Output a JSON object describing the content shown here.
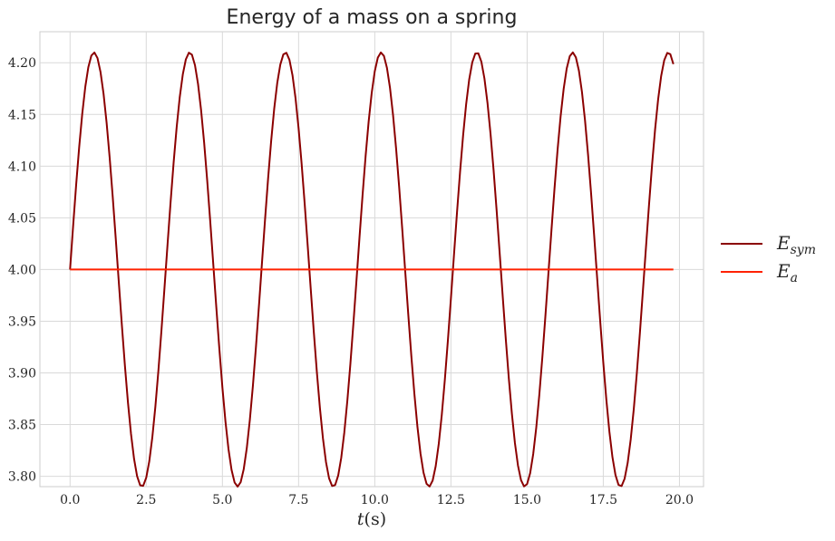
{
  "chart_data": {
    "type": "line",
    "title": "Energy of a mass on a spring",
    "xlabel_main": "t",
    "xlabel_paren": "(s)",
    "ylabel": "",
    "xlim": [
      -0.99,
      20.79
    ],
    "ylim": [
      3.79,
      4.23
    ],
    "xticks": [
      0,
      2.5,
      5,
      7.5,
      10,
      12.5,
      15,
      17.5,
      20
    ],
    "xtick_labels": [
      "0.0",
      "2.5",
      "5.0",
      "7.5",
      "10.0",
      "12.5",
      "15.0",
      "17.5",
      "20.0"
    ],
    "yticks": [
      3.8,
      3.85,
      3.9,
      3.95,
      4.0,
      4.05,
      4.1,
      4.15,
      4.2
    ],
    "ytick_labels": [
      "3.80",
      "3.85",
      "3.90",
      "3.95",
      "4.00",
      "4.05",
      "4.10",
      "4.15",
      "4.20"
    ],
    "grid": true,
    "legend_position": "outside-right",
    "series": [
      {
        "name": "E_sym",
        "legend_main": "E",
        "legend_sub": "sym",
        "color": "#8b0000",
        "model": "sinusoid",
        "x_start": 0,
        "x_end": 19.8,
        "x_step": 0.1,
        "mean": 4.0,
        "amplitude": 0.21,
        "period": 3.14159
      },
      {
        "name": "E_a",
        "legend_main": "E",
        "legend_sub": "a",
        "color": "#ff2200",
        "model": "constant",
        "x_start": 0,
        "x_end": 19.8,
        "value": 4.0
      }
    ]
  }
}
